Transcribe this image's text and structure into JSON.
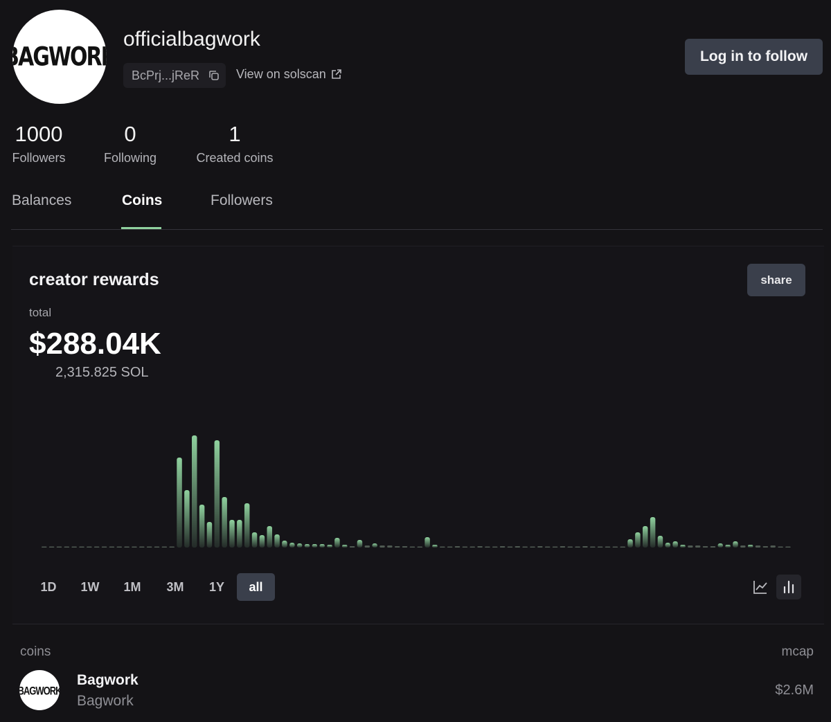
{
  "profile": {
    "avatar_text": "BAGWORK",
    "username": "officialbagwork",
    "address": "BcPrj...jReR",
    "solscan": "View on solscan",
    "follow_button": "Log in to follow",
    "stats": [
      {
        "value": 1000,
        "label": "Followers"
      },
      {
        "value": 0,
        "label": "Following"
      },
      {
        "value": 1,
        "label": "Created coins"
      }
    ]
  },
  "tabs": [
    "Balances",
    "Coins",
    "Followers"
  ],
  "rewards": {
    "title": "creator rewards",
    "share": "share",
    "total_label": "total",
    "total": "$288.04K",
    "sol": "2,315.825 SOL",
    "ranges": [
      "1D",
      "1W",
      "1M",
      "3M",
      "1Y",
      "all"
    ]
  },
  "chart_data": {
    "type": "bar",
    "color": "#8fd19e",
    "values": [
      0.5,
      0.5,
      0.5,
      0.5,
      0.5,
      0.5,
      0.5,
      0.5,
      0.5,
      0.5,
      0.5,
      0.5,
      0.5,
      0.5,
      0.5,
      0.5,
      0.5,
      0.5,
      130,
      83,
      162,
      62,
      37,
      155,
      73,
      40,
      40,
      64,
      22,
      18,
      31,
      19,
      10,
      7,
      6,
      5,
      5,
      5,
      4,
      14,
      4,
      2,
      11,
      3,
      6,
      3,
      3,
      2,
      2,
      1,
      1,
      15,
      4,
      1,
      1,
      2,
      1,
      1,
      2,
      1,
      1,
      2,
      1,
      2,
      1,
      1,
      2,
      1,
      1,
      2,
      1,
      1,
      2,
      1,
      1,
      1,
      1,
      1,
      12,
      22,
      31,
      44,
      17,
      7,
      9,
      4,
      3,
      3,
      2,
      2,
      6,
      4,
      9,
      3,
      4,
      3,
      2,
      3,
      1,
      0.5
    ]
  },
  "coins": {
    "header": "coins",
    "mcap_header": "mcap",
    "rows": [
      {
        "avatar_text": "BAGWORK",
        "name": "Bagwork",
        "symbol": "Bagwork",
        "mcap": "$2.6M"
      }
    ]
  }
}
